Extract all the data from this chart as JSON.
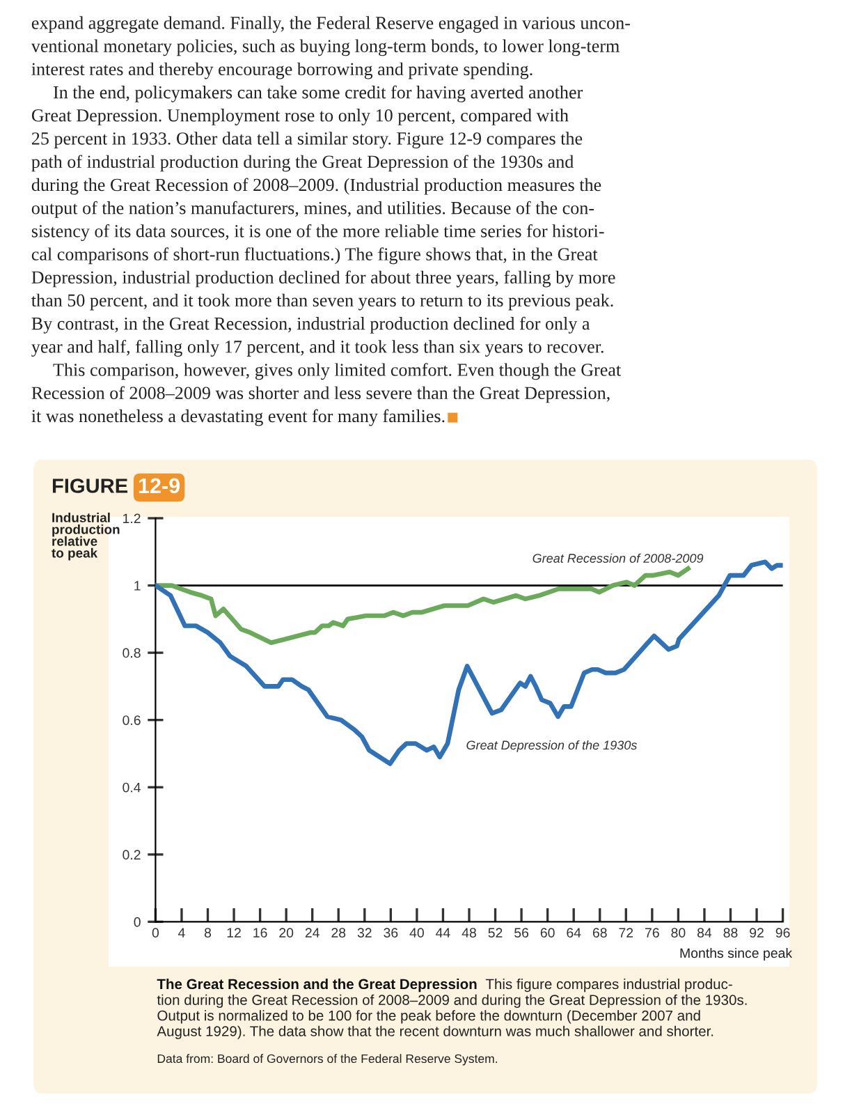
{
  "chart_data": {
    "type": "line",
    "title": "FIGURE 12-9",
    "ylabel": "Industrial\nproduction\nrelative\nto peak",
    "xlabel": "Months since peak",
    "xlim": [
      0,
      96
    ],
    "ylim": [
      0,
      1.2
    ],
    "xticks": [
      0,
      4,
      8,
      12,
      16,
      20,
      24,
      28,
      32,
      36,
      40,
      44,
      48,
      52,
      56,
      60,
      64,
      68,
      72,
      76,
      80,
      84,
      88,
      92,
      96
    ],
    "yticks": [
      0,
      0.2,
      0.4,
      0.6,
      0.8,
      1,
      1.2
    ],
    "grid": false,
    "legend": false,
    "ref_lines": [
      {
        "axis": "y",
        "value": 1,
        "color": "#000000"
      }
    ],
    "series": [
      {
        "name": "Great Recession of 2008-2009",
        "color": "#6aaa5a",
        "x": [
          0,
          2.5,
          5.3,
          7.1,
          8.5,
          9.2,
          10.4,
          13.1,
          14.5,
          17.7,
          19.8,
          23.7,
          24.4,
          25.5,
          26.5,
          27.2,
          28.7,
          29.4,
          32.2,
          35.0,
          36.4,
          37.9,
          39.3,
          40.7,
          44.2,
          47.8,
          50.2,
          51.7,
          55.2,
          56.6,
          58.7,
          61.7,
          63.4,
          66.7,
          67.9,
          70.0,
          72.1,
          73.3,
          75.0,
          76.2,
          78.7,
          80.0,
          81.5
        ],
        "values": [
          1.0,
          1.0,
          0.98,
          0.97,
          0.96,
          0.91,
          0.93,
          0.87,
          0.86,
          0.83,
          0.84,
          0.86,
          0.86,
          0.88,
          0.88,
          0.89,
          0.88,
          0.9,
          0.91,
          0.91,
          0.92,
          0.91,
          0.92,
          0.92,
          0.94,
          0.94,
          0.96,
          0.95,
          0.97,
          0.96,
          0.97,
          0.99,
          0.99,
          0.99,
          0.98,
          1.0,
          1.01,
          1.0,
          1.03,
          1.03,
          1.04,
          1.03,
          1.05
        ]
      },
      {
        "name": "Great Depression of the 1930s",
        "color": "#3171b5",
        "x": [
          0,
          2.3,
          4.5,
          6.2,
          8,
          9.9,
          11.4,
          13.9,
          16.7,
          18.8,
          19.5,
          20.9,
          22.4,
          23.4,
          26.3,
          28.4,
          30.5,
          31.6,
          32.7,
          35.9,
          37.3,
          38.4,
          39.8,
          41.5,
          42.6,
          43.5,
          44.7,
          46.4,
          47.7,
          51.5,
          52.9,
          55.8,
          56.6,
          57.4,
          58.2,
          59.1,
          60.4,
          61.6,
          62.5,
          63.6,
          65.6,
          66.8,
          67.7,
          68.9,
          70.0,
          70.4,
          71.7,
          74.9,
          76.3,
          78.5,
          79.8,
          80.1,
          86.2,
          87.9,
          88.7,
          90.0,
          91.2,
          93.3,
          94.3,
          95.1,
          96
        ],
        "values": [
          1.0,
          0.97,
          0.88,
          0.88,
          0.86,
          0.83,
          0.79,
          0.76,
          0.7,
          0.7,
          0.72,
          0.72,
          0.7,
          0.69,
          0.61,
          0.6,
          0.57,
          0.55,
          0.51,
          0.47,
          0.51,
          0.53,
          0.53,
          0.51,
          0.52,
          0.49,
          0.53,
          0.69,
          0.76,
          0.62,
          0.63,
          0.71,
          0.7,
          0.73,
          0.7,
          0.66,
          0.65,
          0.61,
          0.64,
          0.64,
          0.74,
          0.75,
          0.75,
          0.74,
          0.74,
          0.74,
          0.75,
          0.82,
          0.85,
          0.81,
          0.82,
          0.84,
          0.97,
          1.03,
          1.03,
          1.03,
          1.06,
          1.07,
          1.05,
          1.06,
          1.06
        ]
      }
    ],
    "annotations": [
      "expand aggregate demand. Finally, the Federal Reserve engaged in various uncon-\nventional monetary policies, such as buying long-term bonds, to lower long-term\ninterest rates and thereby encourage borrowing and private spending.",
      "In the end, policymakers can take some credit for having averted another\nGreat Depression. Unemployment rose to only 10 percent, compared with\n25 percent in 1933. Other data tell a similar story. Figure 12-9 compares the\npath of industrial production during the Great Depression of the 1930s and\nduring the Great Recession of 2008–2009. (Industrial production measures the\noutput of the nation’s manufacturers, mines, and utilities. Because of the con-\nsistency of its data sources, it is one of the more reliable time series for histori-\ncal comparisons of short-run fluctuations.) The figure shows that, in the Great\nDepression, industrial production declined for about three years, falling by more\nthan 50 percent, and it took more than seven years to return to its previous peak.\nBy contrast, in the Great Recession, industrial production declined for only a\nyear and half, falling only 17 percent, and it took less than six years to recover.",
      "This comparison, however, gives only limited comfort. Even though the Great\nRecession of 2008–2009 was shorter and less severe than the Great Depression,\nit was nonetheless a devastating event for many families.",
      "The Great Recession and the Great Depression",
      "This figure compares industrial produc-\ntion during the Great Recession of 2008–2009 and during the Great Depression of the 1930s.\nOutput is normalized to be 100 for the peak before the downturn (December 2007 and\nAugust 1929). The data show that the recent downturn was much shallower and shorter.",
      "Data from: Board of Governors of the Federal Reserve System."
    ]
  }
}
